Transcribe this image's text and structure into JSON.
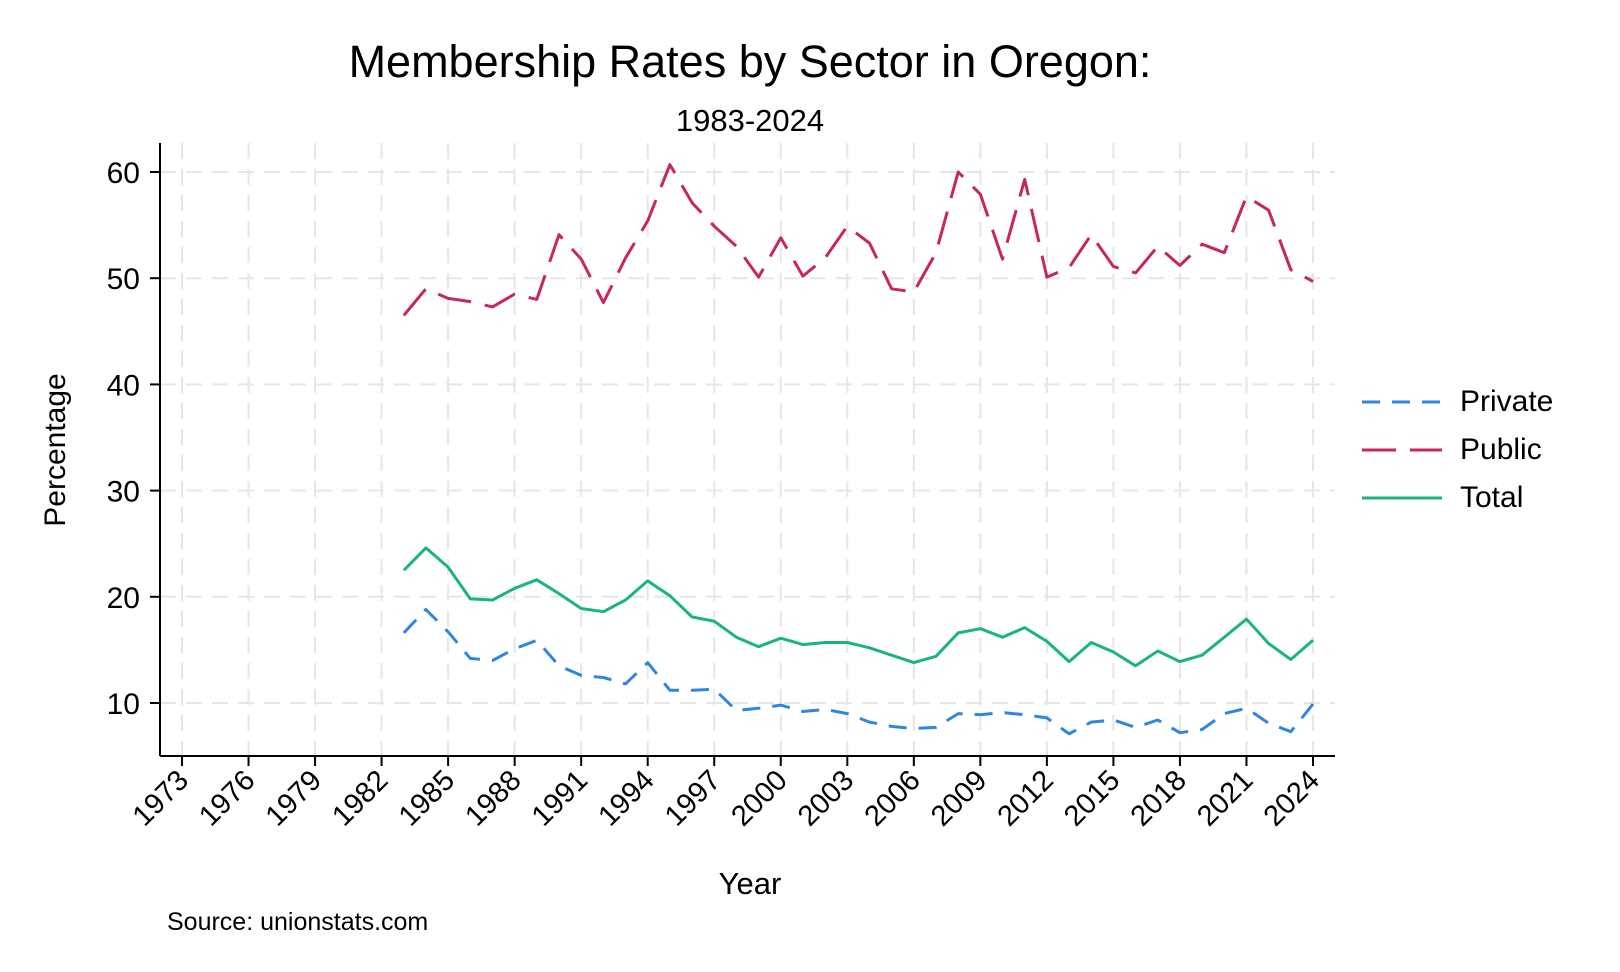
{
  "chart_data": {
    "type": "line",
    "title": "Membership Rates by Sector in Oregon:",
    "subtitle": "1983-2024",
    "xlabel": "Year",
    "ylabel": "Percentage",
    "note": "Source: unionstats.com",
    "xlim": [
      1973,
      2024
    ],
    "ylim": [
      5,
      62
    ],
    "x_ticks": [
      1973,
      1976,
      1979,
      1982,
      1985,
      1988,
      1991,
      1994,
      1997,
      2000,
      2003,
      2006,
      2009,
      2012,
      2015,
      2018,
      2021,
      2024
    ],
    "y_ticks": [
      10,
      20,
      30,
      40,
      50,
      60
    ],
    "grid": true,
    "legend_position": "right",
    "x": [
      1983,
      1984,
      1985,
      1986,
      1987,
      1988,
      1989,
      1990,
      1991,
      1992,
      1993,
      1994,
      1995,
      1996,
      1997,
      1998,
      1999,
      2000,
      2001,
      2002,
      2003,
      2004,
      2005,
      2006,
      2007,
      2008,
      2009,
      2010,
      2011,
      2012,
      2013,
      2014,
      2015,
      2016,
      2017,
      2018,
      2019,
      2020,
      2021,
      2022,
      2023,
      2024
    ],
    "series": [
      {
        "name": "Private",
        "color": "#2f86e0",
        "dash": "short",
        "values": [
          16.6,
          18.8,
          16.7,
          14.2,
          14.0,
          15.1,
          15.9,
          13.5,
          12.6,
          12.4,
          11.8,
          13.8,
          11.2,
          11.2,
          11.3,
          9.3,
          9.5,
          9.8,
          9.2,
          9.4,
          9.0,
          8.2,
          7.8,
          7.6,
          7.7,
          9.0,
          8.9,
          9.1,
          8.9,
          8.6,
          7.1,
          8.2,
          8.4,
          7.7,
          8.4,
          7.2,
          7.5,
          9.0,
          9.5,
          8.1,
          7.3,
          9.9
        ]
      },
      {
        "name": "Public",
        "color": "#c8265e",
        "dash": "long",
        "values": [
          46.5,
          49.0,
          48.1,
          47.8,
          47.3,
          48.5,
          48.0,
          54.1,
          51.8,
          47.7,
          51.9,
          55.4,
          60.7,
          57.1,
          54.9,
          53.0,
          50.1,
          53.8,
          50.2,
          51.9,
          54.9,
          53.3,
          49.0,
          48.7,
          52.4,
          60.0,
          57.9,
          51.8,
          59.3,
          50.1,
          51.0,
          54.1,
          51.1,
          50.5,
          53.0,
          51.2,
          53.2,
          52.4,
          57.7,
          56.4,
          50.8,
          49.7
        ]
      },
      {
        "name": "Total",
        "color": "#1bb380",
        "dash": "solid",
        "values": [
          22.5,
          24.6,
          22.8,
          19.8,
          19.7,
          20.8,
          21.6,
          20.3,
          18.9,
          18.6,
          19.7,
          21.5,
          20.1,
          18.1,
          17.7,
          16.2,
          15.3,
          16.1,
          15.5,
          15.7,
          15.7,
          15.2,
          14.5,
          13.8,
          14.4,
          16.6,
          17.0,
          16.2,
          17.1,
          15.8,
          13.9,
          15.7,
          14.8,
          13.5,
          14.9,
          13.9,
          14.5,
          16.2,
          17.9,
          15.6,
          14.1,
          15.9
        ]
      }
    ]
  }
}
